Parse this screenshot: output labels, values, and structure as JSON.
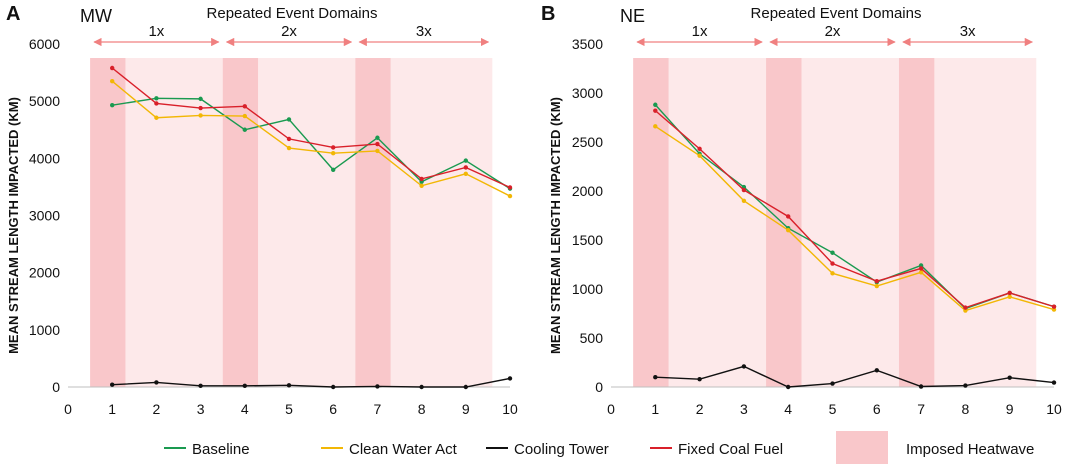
{
  "legend": {
    "entries": [
      {
        "name": "Baseline",
        "color": "#1a9a50",
        "kind": "line"
      },
      {
        "name": "Clean Water Act",
        "color": "#f2b705",
        "kind": "line"
      },
      {
        "name": "Cooling Tower",
        "color": "#111111",
        "kind": "line"
      },
      {
        "name": "Fixed Coal Fuel",
        "color": "#d9202a",
        "kind": "line"
      },
      {
        "name": "Imposed Heatwave",
        "color": "#f9c7ca",
        "kind": "box"
      }
    ]
  },
  "chart_data": [
    {
      "type": "line",
      "panel_label": "A",
      "region": "MW",
      "title": "Repeated Event Domains",
      "domains": [
        {
          "label": "1x",
          "from": 0.5,
          "to": 3.5
        },
        {
          "label": "2x",
          "from": 3.5,
          "to": 6.5
        },
        {
          "label": "3x",
          "from": 6.5,
          "to": 9.6
        }
      ],
      "heatwave_spans": [
        [
          0.5,
          1.3
        ],
        [
          3.5,
          4.3
        ],
        [
          6.5,
          7.3
        ]
      ],
      "light_spans": [
        [
          1.3,
          3.5
        ],
        [
          4.3,
          6.5
        ],
        [
          7.3,
          9.6
        ]
      ],
      "ylabel": "MEAN STREAM LENGTH IMPACTED (KM)",
      "xlabel": "",
      "xlim": [
        0,
        10
      ],
      "ylim": [
        0,
        6000
      ],
      "x_ticks": [
        "0",
        "1",
        "2",
        "3",
        "4",
        "5",
        "6",
        "7",
        "8",
        "9",
        "10"
      ],
      "y_ticks": [
        "0",
        "1000",
        "2000",
        "3000",
        "4000",
        "5000",
        "6000"
      ],
      "x": [
        1,
        2,
        3,
        4,
        5,
        6,
        7,
        8,
        9,
        10
      ],
      "series": [
        {
          "name": "Baseline",
          "color": "#1a9a50",
          "values": [
            4930,
            5050,
            5040,
            4500,
            4680,
            3800,
            4360,
            3590,
            3960,
            3470
          ]
        },
        {
          "name": "Clean Water Act",
          "color": "#f2b705",
          "values": [
            5350,
            4710,
            4750,
            4740,
            4180,
            4090,
            4130,
            3520,
            3730,
            3340
          ]
        },
        {
          "name": "Cooling Tower",
          "color": "#111111",
          "values": [
            40,
            80,
            20,
            20,
            30,
            0,
            10,
            0,
            0,
            150
          ]
        },
        {
          "name": "Fixed Coal Fuel",
          "color": "#d9202a",
          "values": [
            5580,
            4960,
            4880,
            4910,
            4340,
            4190,
            4250,
            3640,
            3840,
            3490
          ]
        }
      ]
    },
    {
      "type": "line",
      "panel_label": "B",
      "region": "NE",
      "title": "Repeated Event Domains",
      "domains": [
        {
          "label": "1x",
          "from": 0.5,
          "to": 3.5
        },
        {
          "label": "2x",
          "from": 3.5,
          "to": 6.5
        },
        {
          "label": "3x",
          "from": 6.5,
          "to": 9.6
        }
      ],
      "heatwave_spans": [
        [
          0.5,
          1.3
        ],
        [
          3.5,
          4.3
        ],
        [
          6.5,
          7.3
        ]
      ],
      "light_spans": [
        [
          1.3,
          3.5
        ],
        [
          4.3,
          6.5
        ],
        [
          7.3,
          9.6
        ]
      ],
      "ylabel": "MEAN STREAM LENGTH IMPACTED (KM)",
      "xlabel": "",
      "xlim": [
        0,
        10
      ],
      "ylim": [
        0,
        3500
      ],
      "x_ticks": [
        "0",
        "1",
        "2",
        "3",
        "4",
        "5",
        "6",
        "7",
        "8",
        "9",
        "10"
      ],
      "y_ticks": [
        "0",
        "500",
        "1000",
        "1500",
        "2000",
        "2500",
        "3000",
        "3500"
      ],
      "x": [
        1,
        2,
        3,
        4,
        5,
        6,
        7,
        8,
        9,
        10
      ],
      "series": [
        {
          "name": "Baseline",
          "color": "#1a9a50",
          "values": [
            2880,
            2380,
            2040,
            1620,
            1370,
            1070,
            1240,
            800,
            960,
            820
          ]
        },
        {
          "name": "Clean Water Act",
          "color": "#f2b705",
          "values": [
            2660,
            2360,
            1900,
            1600,
            1160,
            1030,
            1170,
            780,
            920,
            790
          ]
        },
        {
          "name": "Cooling Tower",
          "color": "#111111",
          "values": [
            100,
            80,
            210,
            0,
            35,
            170,
            5,
            15,
            95,
            45
          ]
        },
        {
          "name": "Fixed Coal Fuel",
          "color": "#d9202a",
          "values": [
            2820,
            2430,
            2010,
            1740,
            1260,
            1080,
            1210,
            810,
            960,
            820
          ]
        }
      ]
    }
  ]
}
